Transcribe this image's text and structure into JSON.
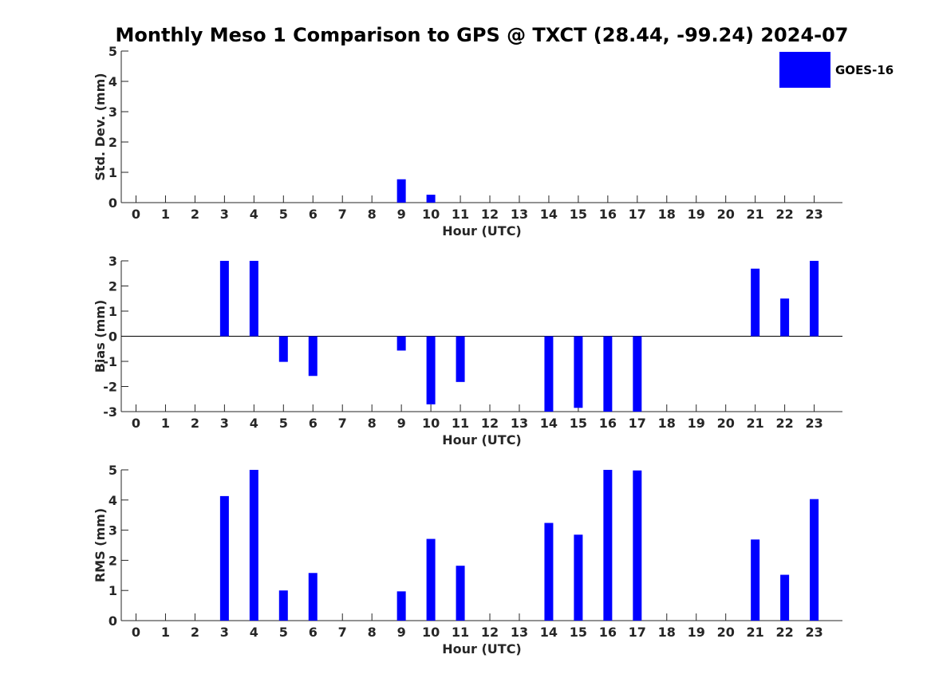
{
  "title": "Monthly Meso 1 Comparison to GPS @ TXCT (28.44, -99.24) 2024-07",
  "colors": {
    "bar": "#0000ff",
    "axis": "#262626"
  },
  "legend": {
    "label": "GOES-16",
    "placement": "top-right"
  },
  "chart_data": [
    {
      "type": "bar",
      "ylabel": "Std. Dev. (mm)",
      "xlabel": "Hour (UTC)",
      "ylim": [
        0,
        5
      ],
      "yticks": [
        0,
        1,
        2,
        3,
        4,
        5
      ],
      "categories": [
        "0",
        "1",
        "2",
        "3",
        "4",
        "5",
        "6",
        "7",
        "8",
        "9",
        "10",
        "11",
        "12",
        "13",
        "14",
        "15",
        "16",
        "17",
        "18",
        "19",
        "20",
        "21",
        "22",
        "23"
      ],
      "series": [
        {
          "name": "GOES-16",
          "values": [
            null,
            null,
            null,
            null,
            null,
            null,
            null,
            null,
            null,
            0.77,
            0.26,
            null,
            null,
            null,
            null,
            null,
            null,
            null,
            null,
            null,
            null,
            null,
            null,
            null
          ]
        }
      ],
      "grid": false
    },
    {
      "type": "bar",
      "ylabel": "Bias (mm)",
      "xlabel": "Hour (UTC)",
      "ylim": [
        -3,
        3
      ],
      "yticks": [
        -3,
        -2,
        -1,
        0,
        1,
        2,
        3
      ],
      "zero_line": true,
      "categories": [
        "0",
        "1",
        "2",
        "3",
        "4",
        "5",
        "6",
        "7",
        "8",
        "9",
        "10",
        "11",
        "12",
        "13",
        "14",
        "15",
        "16",
        "17",
        "18",
        "19",
        "20",
        "21",
        "22",
        "23"
      ],
      "series": [
        {
          "name": "GOES-16",
          "values": [
            null,
            null,
            null,
            3.0,
            3.0,
            -1.02,
            -1.58,
            null,
            null,
            -0.57,
            -2.71,
            -1.82,
            null,
            null,
            -3.0,
            -2.85,
            -3.0,
            -3.0,
            null,
            null,
            null,
            2.69,
            1.5,
            3.0
          ]
        }
      ],
      "grid": false
    },
    {
      "type": "bar",
      "ylabel": "RMS (mm)",
      "xlabel": "Hour (UTC)",
      "ylim": [
        0,
        5
      ],
      "yticks": [
        0,
        1,
        2,
        3,
        4,
        5
      ],
      "categories": [
        "0",
        "1",
        "2",
        "3",
        "4",
        "5",
        "6",
        "7",
        "8",
        "9",
        "10",
        "11",
        "12",
        "13",
        "14",
        "15",
        "16",
        "17",
        "18",
        "19",
        "20",
        "21",
        "22",
        "23"
      ],
      "series": [
        {
          "name": "GOES-16",
          "values": [
            null,
            null,
            null,
            4.13,
            5.0,
            1.0,
            1.58,
            null,
            null,
            0.97,
            2.71,
            1.82,
            null,
            null,
            3.24,
            2.85,
            5.0,
            4.98,
            null,
            null,
            null,
            2.69,
            1.52,
            4.03
          ]
        }
      ],
      "grid": false
    }
  ]
}
